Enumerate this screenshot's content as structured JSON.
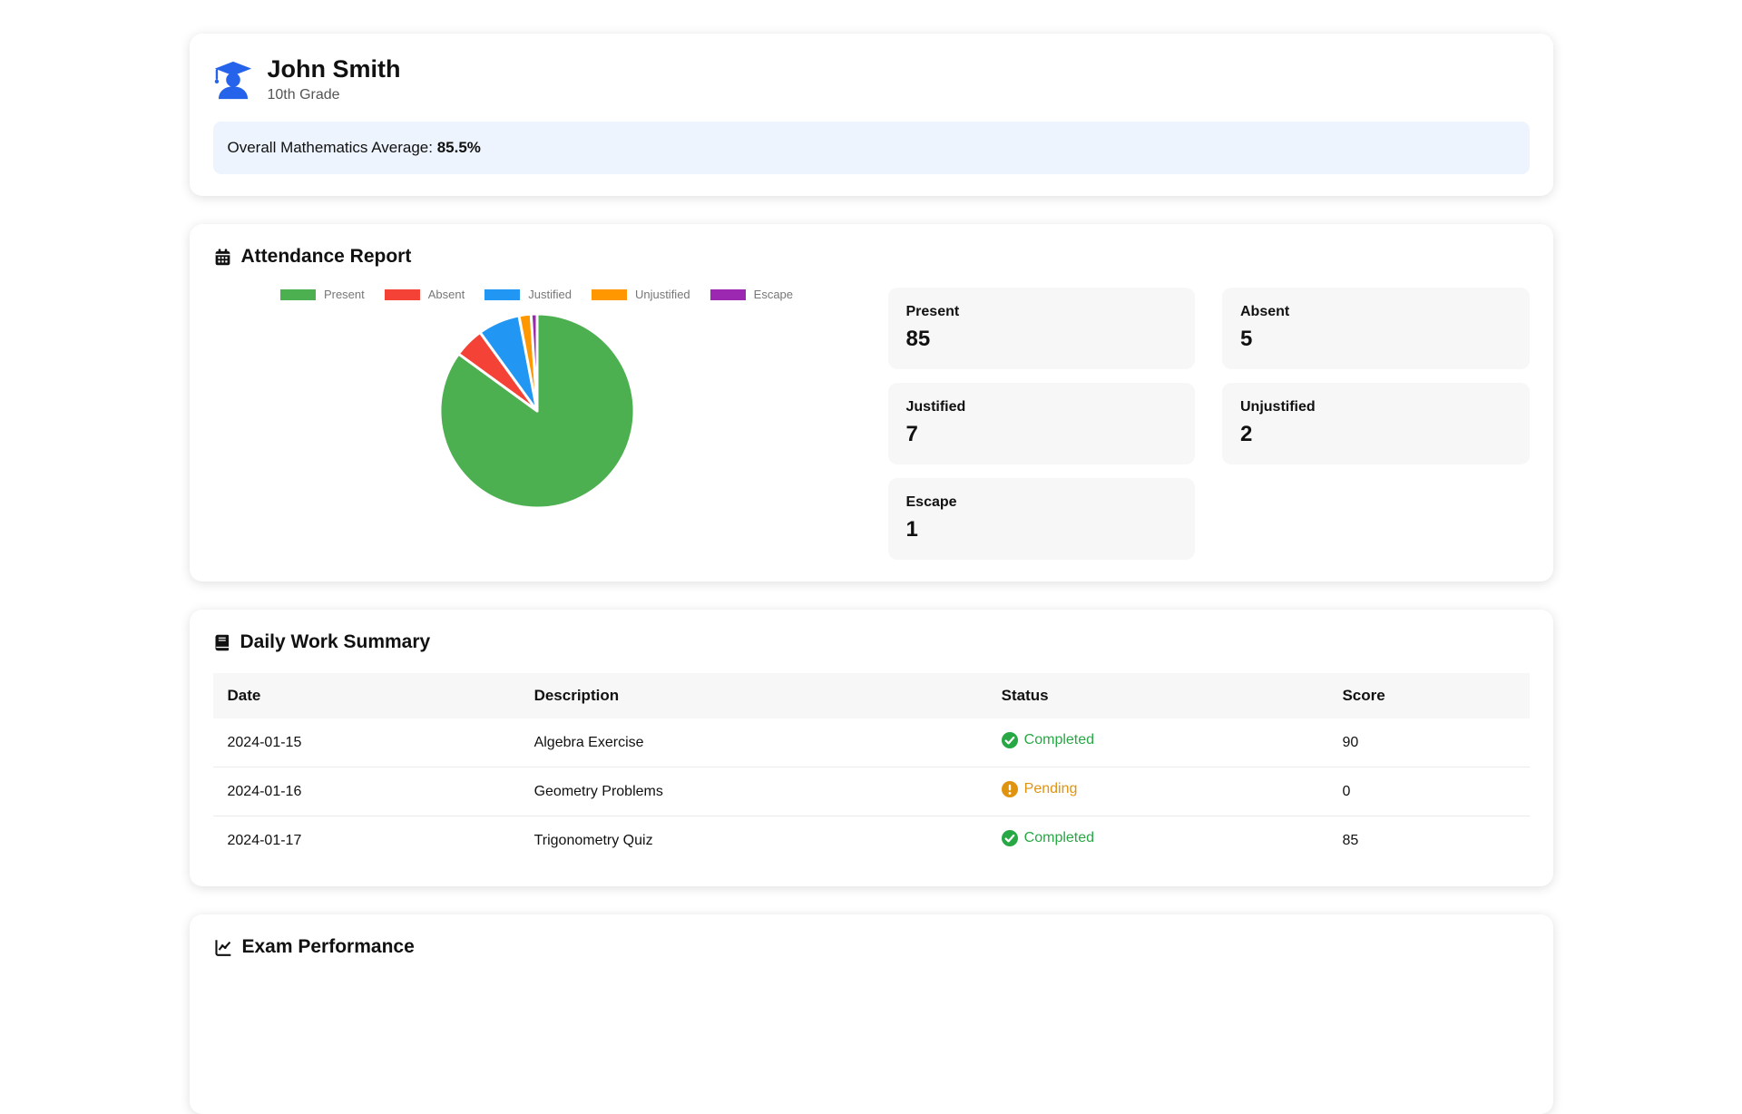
{
  "student": {
    "name": "John Smith",
    "grade": "10th Grade",
    "average_label": "Overall Mathematics Average:",
    "average_value": "85.5%",
    "icon": "user-graduate-icon",
    "icon_color": "#2563eb",
    "banner_color": "#edf4fd"
  },
  "attendance": {
    "title": "Attendance Report",
    "icon": "calendar-icon",
    "stats": [
      {
        "label": "Present",
        "value": "85"
      },
      {
        "label": "Absent",
        "value": "5"
      },
      {
        "label": "Justified",
        "value": "7"
      },
      {
        "label": "Unjustified",
        "value": "2"
      },
      {
        "label": "Escape",
        "value": "1"
      }
    ]
  },
  "chart_data": {
    "type": "pie",
    "title": "Attendance Report",
    "categories": [
      "Present",
      "Absent",
      "Justified",
      "Unjustified",
      "Escape"
    ],
    "values": [
      85,
      5,
      7,
      2,
      1
    ],
    "colors": [
      "#4caf50",
      "#f44336",
      "#2196f3",
      "#ff9800",
      "#9c27b0"
    ],
    "legend_position": "top",
    "border_color": "#ffffff"
  },
  "daily_work": {
    "title": "Daily Work Summary",
    "icon": "book-icon",
    "columns": [
      "Date",
      "Description",
      "Status",
      "Score"
    ],
    "rows": [
      {
        "date": "2024-01-15",
        "description": "Algebra Exercise",
        "status": "Completed",
        "status_type": "completed",
        "score": "90"
      },
      {
        "date": "2024-01-16",
        "description": "Geometry Problems",
        "status": "Pending",
        "status_type": "pending",
        "score": "0"
      },
      {
        "date": "2024-01-17",
        "description": "Trigonometry Quiz",
        "status": "Completed",
        "status_type": "completed",
        "score": "85"
      }
    ],
    "status_colors": {
      "completed": "#28a745",
      "pending": "#e0930f"
    },
    "status_icons": {
      "completed": "check-circle-icon",
      "pending": "exclamation-circle-icon"
    }
  },
  "exam": {
    "title": "Exam Performance",
    "icon": "chart-line-icon"
  }
}
